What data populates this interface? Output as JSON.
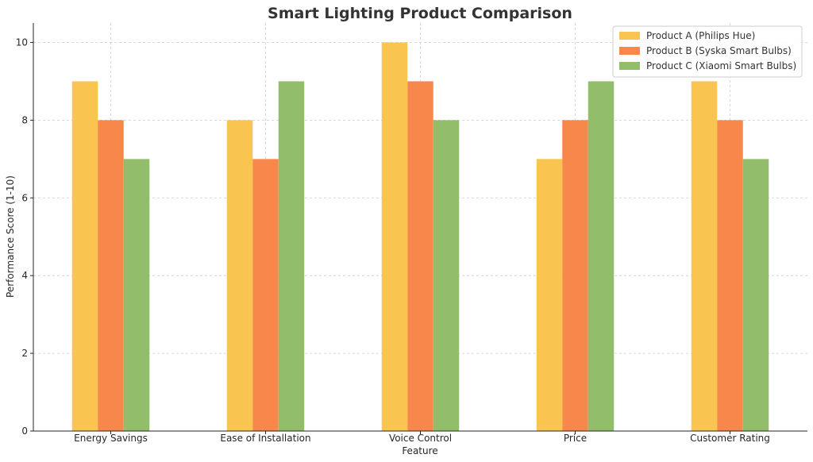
{
  "chart_data": {
    "type": "bar",
    "title": "Smart Lighting Product Comparison",
    "xlabel": "Feature",
    "ylabel": "Performance Score (1-10)",
    "categories": [
      "Energy Savings",
      "Ease of Installation",
      "Voice Control",
      "Price",
      "Customer Rating"
    ],
    "series": [
      {
        "name": "Product A (Philips Hue)",
        "color": "#f9c550",
        "values": [
          9,
          8,
          10,
          7,
          9
        ]
      },
      {
        "name": "Product B (Syska Smart Bulbs)",
        "color": "#f7874a",
        "values": [
          8,
          7,
          9,
          8,
          8
        ]
      },
      {
        "name": "Product C (Xiaomi Smart Bulbs)",
        "color": "#92bd6b",
        "values": [
          7,
          9,
          8,
          9,
          7
        ]
      }
    ],
    "ylim": [
      0,
      10.5
    ],
    "yticks": [
      0,
      2,
      4,
      6,
      8,
      10
    ],
    "grid": true,
    "legend_position": "top-right"
  }
}
